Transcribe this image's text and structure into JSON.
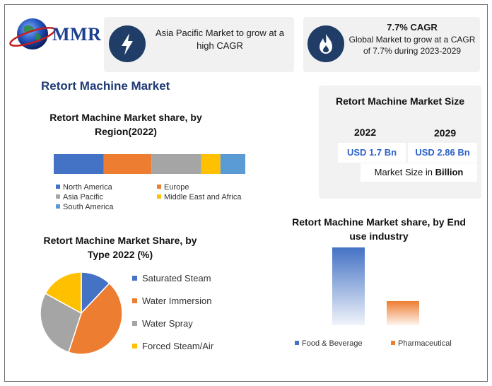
{
  "logo": {
    "text": "MMR"
  },
  "cards": {
    "asia": {
      "text": "Asia Pacific Market to grow at a high CAGR",
      "icon": "lightning-icon"
    },
    "cagr": {
      "title": "7.7% CAGR",
      "text": "Global Market to grow at a CAGR of 7.7% during 2023-2029",
      "icon": "flame-icon"
    }
  },
  "main_title": "Retort Machine Market",
  "market_size": {
    "title": "Retort Machine Market Size",
    "years": [
      {
        "year": "2022",
        "value": "USD 1.7 Bn"
      },
      {
        "year": "2029",
        "value": "USD 2.86 Bn"
      }
    ],
    "unit_prefix": "Market Size in ",
    "unit_bold": "Billion"
  },
  "colors": {
    "blue": "#4472c4",
    "orange": "#ed7d31",
    "gray": "#a5a5a5",
    "yellow": "#ffc000",
    "light_blue": "#5b9bd5",
    "accent": "#1f3b75"
  },
  "chart_data": [
    {
      "type": "bar",
      "orientation": "horizontal-stacked",
      "title": "Retort Machine Market share, by Region(2022)",
      "series": [
        {
          "name": "North America",
          "value": 26,
          "color": "#4472c4"
        },
        {
          "name": "Europe",
          "value": 25,
          "color": "#ed7d31"
        },
        {
          "name": "Asia Pacific",
          "value": 26,
          "color": "#a5a5a5"
        },
        {
          "name": "Middle East and Africa",
          "value": 10,
          "color": "#ffc000"
        },
        {
          "name": "South America",
          "value": 13,
          "color": "#5b9bd5"
        }
      ],
      "legend_placement": "bottom"
    },
    {
      "type": "pie",
      "title": "Retort Machine Market Share, by Type 2022 (%)",
      "slices": [
        {
          "name": "Saturated Steam",
          "value": 12,
          "color": "#4472c4"
        },
        {
          "name": "Water Immersion",
          "value": 43,
          "color": "#ed7d31"
        },
        {
          "name": "Water Spray",
          "value": 28,
          "color": "#a5a5a5"
        },
        {
          "name": "Forced Steam/Air",
          "value": 17,
          "color": "#ffc000"
        }
      ],
      "legend_placement": "right"
    },
    {
      "type": "bar",
      "title": "Retort Machine Market share, by End use industry",
      "categories": [
        "Food & Beverage",
        "Pharmaceutical"
      ],
      "values": [
        100,
        31
      ],
      "colors": [
        "#4472c4",
        "#ed7d31"
      ],
      "ylim": [
        0,
        100
      ],
      "legend_placement": "bottom"
    }
  ]
}
